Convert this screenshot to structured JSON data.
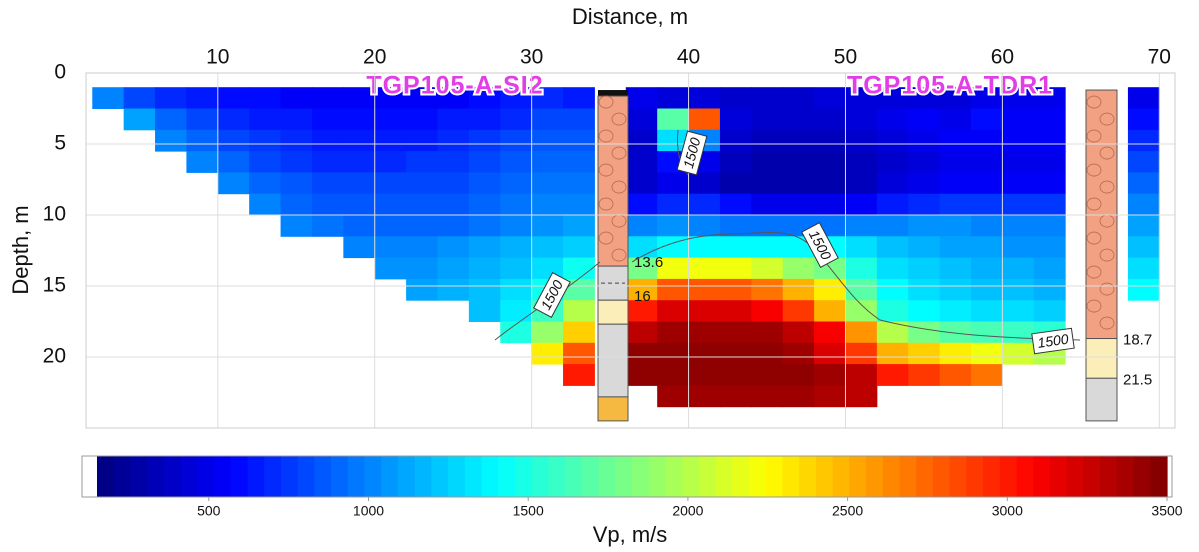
{
  "chart_data": {
    "type": "heatmap",
    "x_label": "Distance, m",
    "y_label": "Depth, m",
    "xlim": [
      1.6,
      71
    ],
    "xticks": [
      10,
      20,
      30,
      40,
      50,
      60,
      70
    ],
    "ylim": [
      0,
      25
    ],
    "yticks": [
      0,
      5,
      10,
      15,
      20
    ],
    "y_inverted": true,
    "grid": true,
    "x": [
      3,
      5,
      7,
      9,
      11,
      13,
      15,
      17,
      19,
      21,
      23,
      25,
      27,
      29,
      31,
      33,
      35,
      37,
      39,
      41,
      43,
      45,
      47,
      49,
      51,
      53,
      55,
      57,
      59,
      61,
      63,
      65,
      67,
      69
    ],
    "y": [
      1.75,
      3.25,
      4.75,
      6.25,
      7.75,
      9.25,
      10.75,
      12.25,
      13.75,
      15.25,
      16.75,
      18.25,
      19.75,
      21.25,
      22.75
    ],
    "values": [
      [
        1000,
        800,
        700,
        650,
        600,
        600,
        550,
        550,
        550,
        550,
        550,
        550,
        600,
        650,
        700,
        650,
        null,
        500,
        450,
        450,
        400,
        400,
        400,
        450,
        450,
        450,
        450,
        450,
        500,
        500,
        500,
        null,
        null,
        500
      ],
      [
        null,
        1100,
        900,
        800,
        700,
        650,
        650,
        600,
        600,
        600,
        600,
        650,
        650,
        700,
        800,
        800,
        null,
        450,
        1700,
        2800,
        450,
        400,
        400,
        400,
        450,
        500,
        550,
        500,
        600,
        550,
        550,
        null,
        null,
        600
      ],
      [
        null,
        null,
        1000,
        900,
        800,
        750,
        700,
        650,
        650,
        650,
        650,
        700,
        750,
        800,
        850,
        850,
        null,
        400,
        1300,
        1000,
        400,
        350,
        350,
        350,
        400,
        450,
        500,
        550,
        550,
        550,
        550,
        null,
        null,
        700
      ],
      [
        null,
        null,
        null,
        1000,
        900,
        800,
        750,
        700,
        700,
        700,
        750,
        750,
        800,
        850,
        900,
        900,
        null,
        400,
        600,
        500,
        350,
        300,
        300,
        300,
        350,
        400,
        450,
        500,
        500,
        500,
        500,
        null,
        null,
        800
      ],
      [
        null,
        null,
        null,
        null,
        1000,
        900,
        850,
        800,
        800,
        800,
        800,
        800,
        850,
        900,
        950,
        950,
        null,
        400,
        500,
        400,
        300,
        300,
        300,
        300,
        350,
        450,
        500,
        550,
        550,
        550,
        550,
        null,
        null,
        900
      ],
      [
        null,
        null,
        null,
        null,
        null,
        1000,
        900,
        850,
        850,
        850,
        850,
        850,
        900,
        950,
        1000,
        1000,
        null,
        600,
        700,
        700,
        600,
        500,
        500,
        500,
        550,
        650,
        700,
        750,
        750,
        750,
        750,
        null,
        null,
        1000
      ],
      [
        null,
        null,
        null,
        null,
        null,
        null,
        1000,
        950,
        900,
        900,
        900,
        900,
        950,
        1000,
        1050,
        1100,
        null,
        1000,
        1050,
        1000,
        950,
        950,
        950,
        950,
        1000,
        1000,
        1050,
        1050,
        1000,
        1000,
        1000,
        null,
        null,
        1100
      ],
      [
        null,
        null,
        null,
        null,
        null,
        null,
        null,
        null,
        1000,
        1000,
        1000,
        1050,
        1100,
        1150,
        1200,
        1250,
        null,
        1300,
        1400,
        1400,
        1400,
        1400,
        1400,
        1400,
        1300,
        1200,
        1150,
        1100,
        1100,
        1050,
        1050,
        null,
        null,
        1200
      ],
      [
        null,
        null,
        null,
        null,
        null,
        null,
        null,
        null,
        null,
        1050,
        1050,
        1100,
        1150,
        1200,
        1300,
        1450,
        null,
        1800,
        2200,
        2200,
        2200,
        2100,
        1900,
        1800,
        1500,
        1300,
        1250,
        1200,
        1150,
        1150,
        1100,
        null,
        null,
        1300
      ],
      [
        null,
        null,
        null,
        null,
        null,
        null,
        null,
        null,
        null,
        null,
        1100,
        1150,
        1200,
        1300,
        1450,
        1700,
        null,
        2500,
        2800,
        2800,
        2800,
        2700,
        2500,
        2300,
        1700,
        1400,
        1300,
        1250,
        1200,
        1200,
        1150,
        null,
        null,
        1400
      ],
      [
        null,
        null,
        null,
        null,
        null,
        null,
        null,
        null,
        null,
        null,
        null,
        null,
        1200,
        1350,
        1600,
        2000,
        null,
        3000,
        3200,
        3200,
        3200,
        3100,
        2900,
        2500,
        1900,
        1500,
        1400,
        1350,
        1300,
        1300,
        1250,
        null,
        null,
        null
      ],
      [
        null,
        null,
        null,
        null,
        null,
        null,
        null,
        null,
        null,
        null,
        null,
        null,
        null,
        1500,
        1900,
        2400,
        null,
        3300,
        3400,
        3400,
        3400,
        3400,
        3300,
        3100,
        2600,
        2000,
        1800,
        1700,
        1650,
        1600,
        1550,
        null,
        null,
        null
      ],
      [
        null,
        null,
        null,
        null,
        null,
        null,
        null,
        null,
        null,
        null,
        null,
        null,
        null,
        null,
        2300,
        2800,
        null,
        3450,
        3450,
        3450,
        3450,
        3450,
        3400,
        3200,
        2900,
        2500,
        2400,
        2300,
        2200,
        2100,
        2000,
        null,
        null,
        null
      ],
      [
        null,
        null,
        null,
        null,
        null,
        null,
        null,
        null,
        null,
        null,
        null,
        null,
        null,
        null,
        null,
        3000,
        null,
        3450,
        3450,
        3450,
        3450,
        3450,
        3450,
        3400,
        3300,
        3000,
        2900,
        2800,
        2700,
        null,
        null,
        null,
        null,
        null
      ],
      [
        null,
        null,
        null,
        null,
        null,
        null,
        null,
        null,
        null,
        null,
        null,
        null,
        null,
        null,
        null,
        null,
        null,
        null,
        3400,
        3400,
        3400,
        3400,
        3400,
        3350,
        3300,
        null,
        null,
        null,
        null,
        null,
        null,
        null,
        null,
        null
      ]
    ],
    "contour_level": 1500,
    "colorbar": {
      "label": "Vp, m/s",
      "lim": [
        150,
        3500
      ],
      "ticks": [
        500,
        1000,
        1500,
        2000,
        2500,
        3000,
        3500
      ]
    },
    "boreholes": [
      {
        "name": "TGP105-A-SI2",
        "interfaces": [
          13.6,
          16
        ]
      },
      {
        "name": "TGP105-A-TDR1",
        "interfaces": [
          18.7,
          21.5
        ]
      }
    ]
  }
}
